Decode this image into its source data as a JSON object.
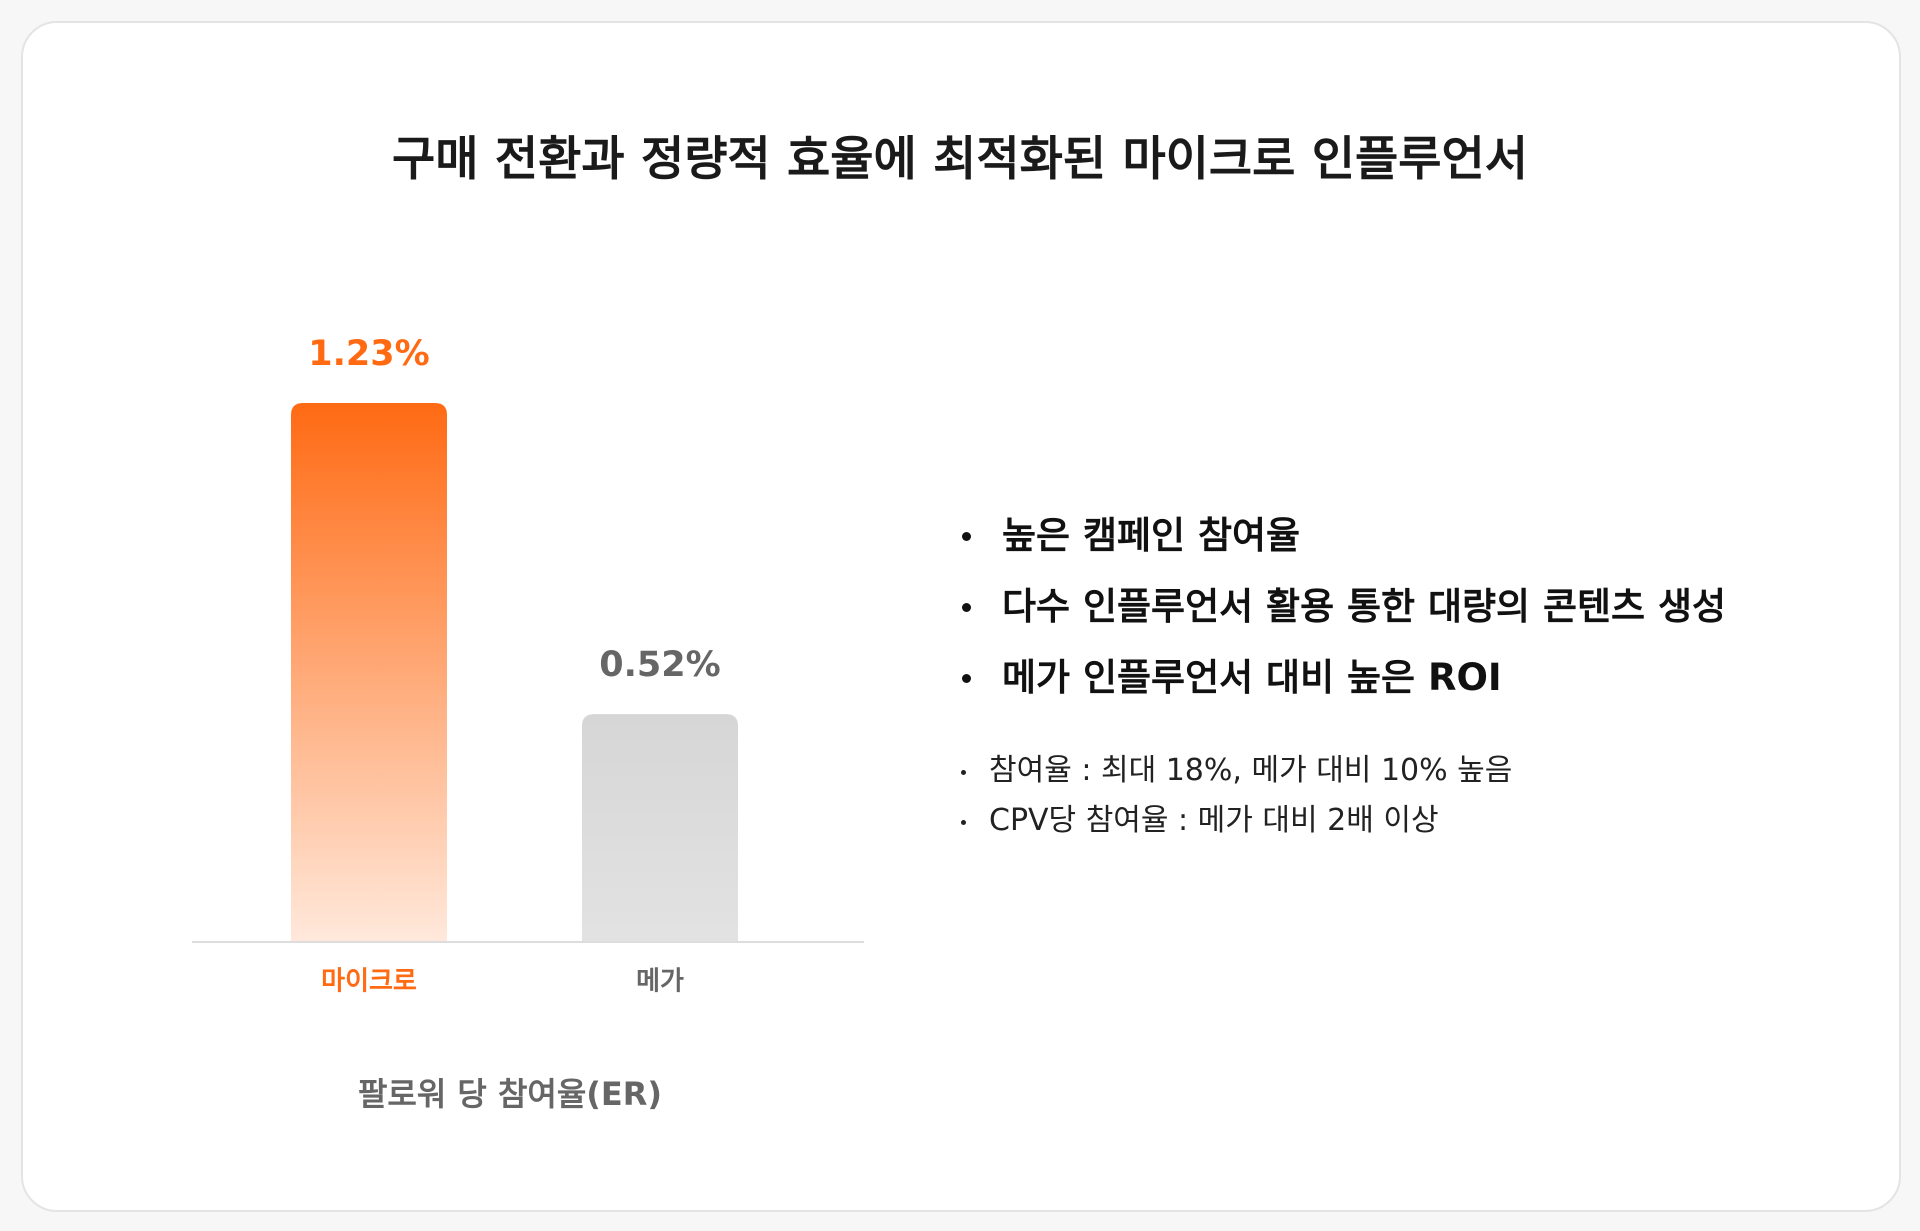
{
  "title": "구매 전환과 정량적 효율에 최적화된 마이크로 인플루언서",
  "chart_data": {
    "type": "bar",
    "categories": [
      "마이크로",
      "메가"
    ],
    "values": [
      1.23,
      0.52
    ],
    "value_labels": [
      "1.23%",
      "0.52%"
    ],
    "colors": [
      "#ff6a13",
      "#d6d6d6"
    ],
    "xlabel": "팔로워 당 참여율(ER)"
  },
  "highlights": [
    "높은 캠페인 참여율",
    "다수 인플루언서 활용 통한 대량의 콘텐츠 생성",
    "메가 인플루언서 대비 높은 ROI"
  ],
  "notes": [
    "참여율 : 최대 18%, 메가 대비 10% 높음",
    "CPV당 참여율 : 메가 대비 2배 이상"
  ]
}
